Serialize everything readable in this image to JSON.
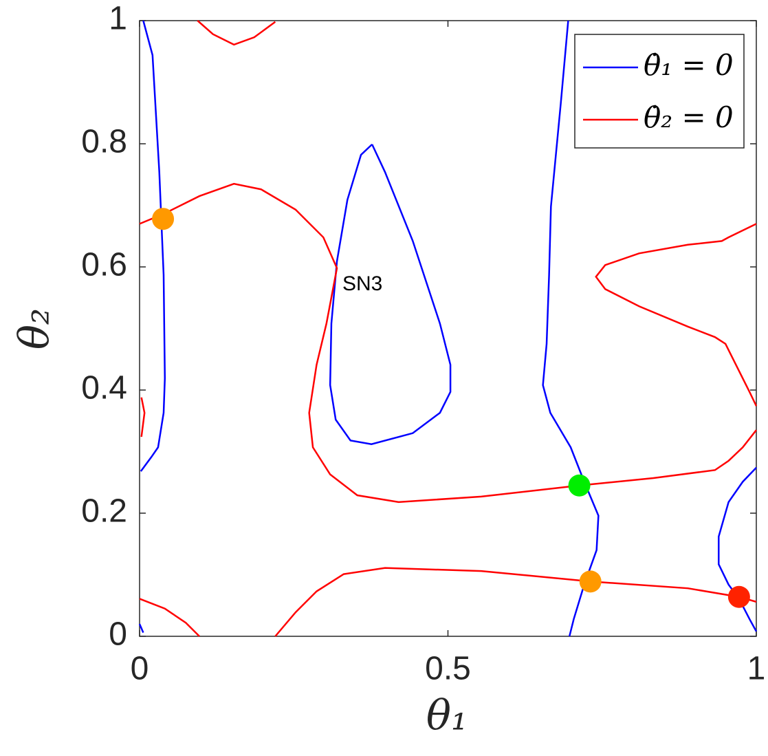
{
  "chart_data": {
    "type": "line",
    "xlabel": "θ₁",
    "ylabel": "θ₂",
    "xlim": [
      0,
      1
    ],
    "ylim": [
      0,
      1
    ],
    "xticks": [
      0,
      0.5,
      1
    ],
    "yticks": [
      0,
      0.2,
      0.4,
      0.6,
      0.8,
      1
    ],
    "legend": "upper right",
    "annotations": [
      "SN3"
    ],
    "series": [
      {
        "name": "θ̇₁ = 0",
        "color": "#0000ff",
        "x": [
          0.006,
          0.021,
          0.032,
          0.039,
          0.041,
          0.039,
          0.03,
          0.019,
          0.002,
          null,
          0,
          0.006,
          null,
          0.377,
          0.398,
          0.443,
          0.487,
          0.504,
          0.504,
          0.487,
          0.443,
          0.376,
          0.342,
          0.318,
          0.309,
          0.311,
          0.32,
          0.337,
          0.359,
          0.377,
          null,
          0.695,
          0.683,
          0.667,
          0.664,
          0.66,
          0.654,
          0.666,
          0.699,
          0.721,
          0.744,
          0.741,
          0.721,
          0.704,
          0.697,
          null,
          1,
          0.978,
          0.955,
          0.939,
          0.939,
          0.955,
          0.972,
          0.989,
          1
        ],
        "values": [
          1,
          0.944,
          0.754,
          0.587,
          0.419,
          0.363,
          0.307,
          0.291,
          0.268,
          null,
          0.02,
          0.006,
          null,
          0.799,
          0.754,
          0.642,
          0.508,
          0.441,
          0.397,
          0.363,
          0.33,
          0.312,
          0.318,
          0.352,
          0.408,
          0.508,
          0.609,
          0.709,
          0.782,
          0.799,
          null,
          1,
          0.866,
          0.698,
          0.587,
          0.475,
          0.408,
          0.363,
          0.307,
          0.251,
          0.196,
          0.14,
          0.084,
          0.028,
          0,
          null,
          0.274,
          0.251,
          0.218,
          0.162,
          0.117,
          0.084,
          0.061,
          0.028,
          0.008
        ]
      },
      {
        "name": "θ̇₂ = 0",
        "color": "#ff0000",
        "x": [
          0.094,
          0.119,
          0.153,
          0.186,
          0.22,
          null,
          0,
          0.041,
          0.097,
          0.153,
          0.197,
          0.253,
          0.298,
          0.32,
          0.303,
          0.287,
          0.275,
          0.281,
          0.309,
          0.353,
          0.42,
          0.554,
          0.713,
          0.833,
          0.933,
          0.955,
          0.978,
          1,
          null,
          1,
          0.955,
          0.944,
          0.889,
          0.81,
          0.755,
          0.74,
          0.755,
          0.81,
          0.889,
          0.933,
          0.95,
          0.967,
          0.989,
          1,
          null,
          0.003,
          0.008,
          0.003,
          null,
          0.22,
          0.253,
          0.287,
          0.331,
          0.398,
          0.554,
          0.732,
          0.889,
          0.972,
          1,
          null,
          0,
          0.041,
          0.075,
          0.097
        ],
        "values": [
          1,
          0.978,
          0.961,
          0.973,
          0.998,
          null,
          0.67,
          0.687,
          0.715,
          0.735,
          0.726,
          0.693,
          0.648,
          0.598,
          0.508,
          0.441,
          0.363,
          0.307,
          0.263,
          0.229,
          0.218,
          0.227,
          0.245,
          0.257,
          0.27,
          0.285,
          0.307,
          0.335,
          null,
          0.67,
          0.648,
          0.642,
          0.636,
          0.622,
          0.603,
          0.584,
          0.564,
          0.536,
          0.503,
          0.486,
          0.475,
          0.441,
          0.397,
          0.374,
          null,
          0.388,
          0.363,
          0.324,
          null,
          0,
          0.039,
          0.073,
          0.101,
          0.111,
          0.106,
          0.089,
          0.078,
          0.064,
          0.056,
          null,
          0.061,
          0.045,
          0.022,
          0
        ]
      }
    ],
    "markers": {
      "x": [
        0.038,
        0.713,
        0.731,
        0.972
      ],
      "values": [
        0.678,
        0.245,
        0.089,
        0.064
      ],
      "colors": [
        "#ff9900",
        "#00ee00",
        "#ff9900",
        "#ff2200"
      ]
    }
  }
}
